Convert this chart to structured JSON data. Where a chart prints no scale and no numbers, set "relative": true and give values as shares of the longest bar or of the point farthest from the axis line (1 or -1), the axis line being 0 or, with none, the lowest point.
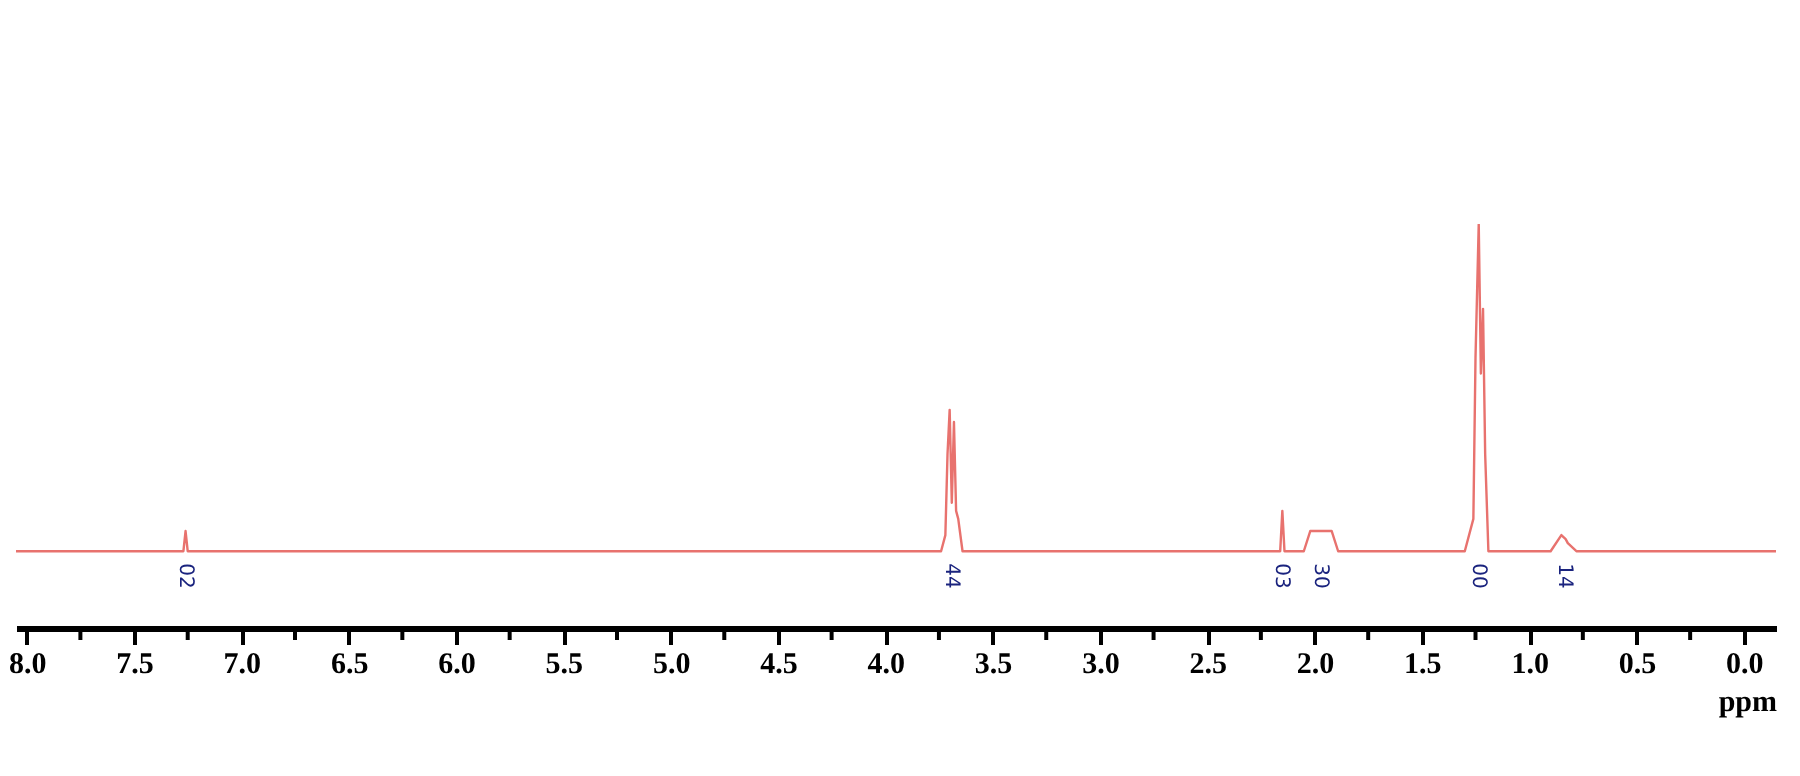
{
  "chart_data": {
    "type": "line",
    "relative": true,
    "xlabel": "ppm",
    "xlim": [
      8.05,
      -0.15
    ],
    "xticks": [
      {
        "value": 8,
        "label": "8.0"
      },
      {
        "value": 7.75,
        "label": null
      },
      {
        "value": 7.5,
        "label": "7.5"
      },
      {
        "value": 7.25,
        "label": null
      },
      {
        "value": 7,
        "label": "7.0"
      },
      {
        "value": 6.75,
        "label": null
      },
      {
        "value": 6.5,
        "label": "6.5"
      },
      {
        "value": 6.25,
        "label": null
      },
      {
        "value": 6,
        "label": "6.0"
      },
      {
        "value": 5.75,
        "label": null
      },
      {
        "value": 5.5,
        "label": "5.5"
      },
      {
        "value": 5.25,
        "label": null
      },
      {
        "value": 5,
        "label": "5.0"
      },
      {
        "value": 4.75,
        "label": null
      },
      {
        "value": 4.5,
        "label": "4.5"
      },
      {
        "value": 4.25,
        "label": null
      },
      {
        "value": 4,
        "label": "4.0"
      },
      {
        "value": 3.75,
        "label": null
      },
      {
        "value": 3.5,
        "label": "3.5"
      },
      {
        "value": 3.25,
        "label": null
      },
      {
        "value": 3,
        "label": "3.0"
      },
      {
        "value": 2.75,
        "label": null
      },
      {
        "value": 2.5,
        "label": "2.5"
      },
      {
        "value": 2.25,
        "label": null
      },
      {
        "value": 2,
        "label": "2.0"
      },
      {
        "value": 1.75,
        "label": null
      },
      {
        "value": 1.5,
        "label": "1.5"
      },
      {
        "value": 1.25,
        "label": null
      },
      {
        "value": 1,
        "label": "1.0"
      },
      {
        "value": 0.75,
        "label": null
      },
      {
        "value": 0.5,
        "label": "0.5"
      },
      {
        "value": 0.25,
        "label": null
      },
      {
        "value": 0,
        "label": "0.0"
      }
    ],
    "grid": false,
    "marker": "none",
    "line_style": "solid",
    "series": [
      {
        "color": "#e8726e",
        "x": [
          8.05,
          7.27,
          7.26,
          7.25,
          3.74,
          3.72,
          3.71,
          3.7,
          3.69,
          3.68,
          3.67,
          3.66,
          3.64,
          2.16,
          2.15,
          2.14,
          2.05,
          2.02,
          1.92,
          1.89,
          1.3,
          1.26,
          1.25,
          1.235,
          1.225,
          1.215,
          1.205,
          1.19,
          0.9,
          0.85,
          0.83,
          0.82,
          0.78,
          -0.15
        ],
        "values": [
          0.19,
          0.19,
          0.24,
          0.19,
          0.19,
          0.23,
          0.43,
          0.54,
          0.31,
          0.51,
          0.29,
          0.27,
          0.19,
          0.19,
          0.29,
          0.19,
          0.19,
          0.24,
          0.24,
          0.19,
          0.19,
          0.27,
          0.67,
          1.0,
          0.63,
          0.79,
          0.43,
          0.19,
          0.19,
          0.23,
          0.22,
          0.21,
          0.19,
          0.19
        ]
      }
    ],
    "annotations": [
      "02",
      "44",
      "03",
      "30",
      "00",
      "14"
    ]
  }
}
